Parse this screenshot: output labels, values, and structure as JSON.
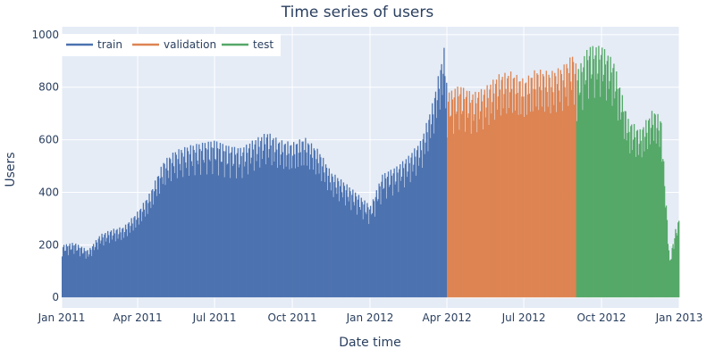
{
  "chart_data": {
    "type": "line",
    "title": "Time series of users",
    "xlabel": "Date time",
    "ylabel": "Users",
    "x_range": [
      "2011-01-01",
      "2013-01-01"
    ],
    "ylim": [
      -40,
      1030
    ],
    "grid": true,
    "legend_position": "top-left",
    "x_ticks": [
      {
        "date": "2011-01-01",
        "label": "Jan 2011"
      },
      {
        "date": "2011-04-01",
        "label": "Apr 2011"
      },
      {
        "date": "2011-07-01",
        "label": "Jul 2011"
      },
      {
        "date": "2011-10-01",
        "label": "Oct 2011"
      },
      {
        "date": "2012-01-01",
        "label": "Jan 2012"
      },
      {
        "date": "2012-04-01",
        "label": "Apr 2012"
      },
      {
        "date": "2012-07-01",
        "label": "Jul 2012"
      },
      {
        "date": "2012-10-01",
        "label": "Oct 2012"
      },
      {
        "date": "2013-01-01",
        "label": "Jan 2013"
      }
    ],
    "y_ticks": [
      0,
      200,
      400,
      600,
      800,
      1000
    ],
    "series": [
      {
        "name": "train",
        "color": "#4c72b0",
        "points": [
          [
            "2011-01-01",
            200
          ],
          [
            "2011-01-15",
            210
          ],
          [
            "2011-02-01",
            180
          ],
          [
            "2011-02-15",
            240
          ],
          [
            "2011-03-01",
            260
          ],
          [
            "2011-03-15",
            270
          ],
          [
            "2011-04-01",
            330
          ],
          [
            "2011-04-15",
            400
          ],
          [
            "2011-05-01",
            520
          ],
          [
            "2011-05-15",
            560
          ],
          [
            "2011-06-01",
            580
          ],
          [
            "2011-06-15",
            590
          ],
          [
            "2011-07-01",
            600
          ],
          [
            "2011-07-15",
            580
          ],
          [
            "2011-08-01",
            570
          ],
          [
            "2011-08-15",
            600
          ],
          [
            "2011-09-01",
            630
          ],
          [
            "2011-09-15",
            600
          ],
          [
            "2011-10-01",
            590
          ],
          [
            "2011-10-15",
            610
          ],
          [
            "2011-11-01",
            560
          ],
          [
            "2011-11-15",
            480
          ],
          [
            "2011-12-01",
            440
          ],
          [
            "2011-12-15",
            400
          ],
          [
            "2012-01-01",
            350
          ],
          [
            "2012-01-15",
            470
          ],
          [
            "2012-02-01",
            500
          ],
          [
            "2012-02-15",
            540
          ],
          [
            "2012-03-01",
            600
          ],
          [
            "2012-03-15",
            750
          ],
          [
            "2012-03-28",
            950
          ],
          [
            "2012-04-01",
            800
          ]
        ]
      },
      {
        "name": "validation",
        "color": "#dd8452",
        "points": [
          [
            "2012-04-01",
            780
          ],
          [
            "2012-04-15",
            810
          ],
          [
            "2012-05-01",
            780
          ],
          [
            "2012-05-15",
            800
          ],
          [
            "2012-06-01",
            850
          ],
          [
            "2012-06-15",
            860
          ],
          [
            "2012-07-01",
            830
          ],
          [
            "2012-07-15",
            870
          ],
          [
            "2012-08-01",
            860
          ],
          [
            "2012-08-15",
            880
          ],
          [
            "2012-08-28",
            930
          ],
          [
            "2012-09-01",
            880
          ]
        ]
      },
      {
        "name": "test",
        "color": "#55a868",
        "points": [
          [
            "2012-09-01",
            860
          ],
          [
            "2012-09-15",
            960
          ],
          [
            "2012-10-01",
            960
          ],
          [
            "2012-10-15",
            900
          ],
          [
            "2012-11-01",
            680
          ],
          [
            "2012-11-15",
            640
          ],
          [
            "2012-12-01",
            720
          ],
          [
            "2012-12-10",
            680
          ],
          [
            "2012-12-20",
            140
          ],
          [
            "2012-12-27",
            260
          ],
          [
            "2013-01-01",
            310
          ]
        ]
      }
    ]
  }
}
